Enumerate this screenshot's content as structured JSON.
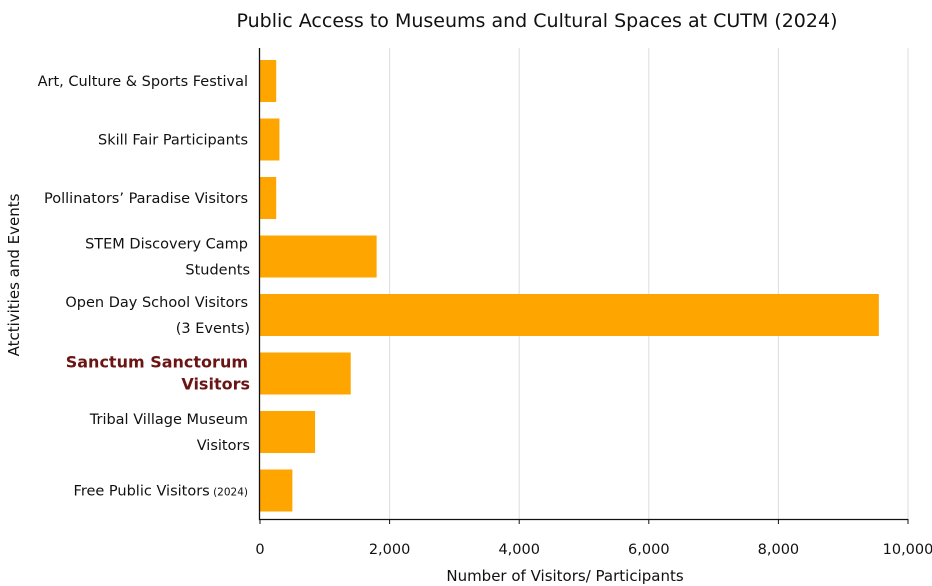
{
  "chart_data": {
    "type": "bar",
    "orientation": "horizontal",
    "title": "Public Access to Museums and Cultural Spaces at CUTM (2024)",
    "xlabel": "Number of Visitors/ Participants",
    "ylabel": "Atctivities and Events",
    "xlim": [
      0,
      10000
    ],
    "x_ticks": [
      0,
      2000,
      4000,
      6000,
      8000,
      10000
    ],
    "x_tick_labels": [
      "0",
      "2,000",
      "4,000",
      "6,000",
      "8,000",
      "10,000"
    ],
    "grid": "vertical",
    "bar_color": "#ffa500",
    "highlight_color": "#6b1414",
    "categories": [
      {
        "lines": [
          "Art, Culture & Sports Festival"
        ],
        "value": 250
      },
      {
        "lines": [
          "Skill Fair Participants"
        ],
        "value": 300
      },
      {
        "lines": [
          "Pollinators’ Paradise Visitors"
        ],
        "value": 250
      },
      {
        "lines": [
          "STEM Discovery Camp",
          "Students"
        ],
        "value": 1800
      },
      {
        "lines": [
          "Open Day School Visitors",
          "(3 Events)"
        ],
        "value": 9550
      },
      {
        "lines": [
          "Sanctum Sanctorum",
          "Visitors"
        ],
        "value": 1400,
        "highlight": true
      },
      {
        "lines": [
          "Tribal Village Museum",
          "Visitors"
        ],
        "value": 850
      },
      {
        "lines": [
          "Free Public Visitors"
        ],
        "suffix": "(2024)",
        "value": 500
      }
    ]
  }
}
